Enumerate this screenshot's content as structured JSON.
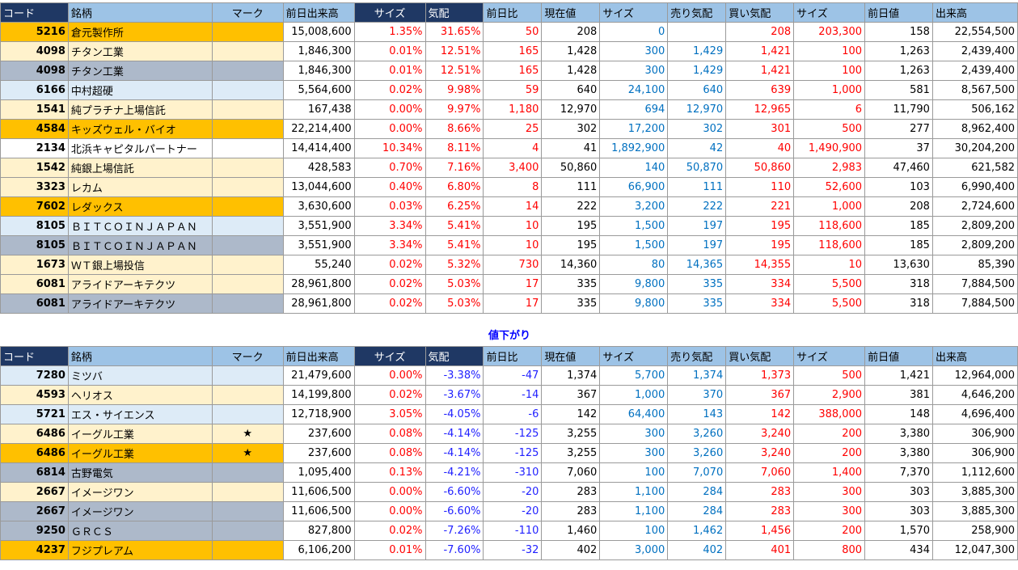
{
  "headers": [
    "コード",
    "銘柄",
    "マーク",
    "前日出来高",
    "サイズ",
    "気配",
    "前日比",
    "現在値",
    "サイズ",
    "売り気配",
    "買い気配",
    "サイズ",
    "前日値",
    "出来高"
  ],
  "section_down_label": "値下がり",
  "up_rows": [
    {
      "bg": "orange",
      "code": "5216",
      "name": "倉元製作所",
      "mark": "",
      "prev_vol": "15,008,600",
      "size1": "1.35%",
      "kehai": "31.65%",
      "change": "50",
      "price": "208",
      "size2": "0",
      "ask": "",
      "bid": "208",
      "size3": "203,300",
      "prev": "158",
      "vol": "22,554,500"
    },
    {
      "bg": "cream",
      "code": "4098",
      "name": "チタン工業",
      "mark": "",
      "prev_vol": "1,846,300",
      "size1": "0.01%",
      "kehai": "12.51%",
      "change": "165",
      "price": "1,428",
      "size2": "300",
      "ask": "1,429",
      "bid": "1,421",
      "size3": "100",
      "prev": "1,263",
      "vol": "2,439,400"
    },
    {
      "bg": "gray",
      "code": "4098",
      "name": "チタン工業",
      "mark": "",
      "prev_vol": "1,846,300",
      "size1": "0.01%",
      "kehai": "12.51%",
      "change": "165",
      "price": "1,428",
      "size2": "300",
      "ask": "1,429",
      "bid": "1,421",
      "size3": "100",
      "prev": "1,263",
      "vol": "2,439,400"
    },
    {
      "bg": "lightblue",
      "code": "6166",
      "name": "中村超硬",
      "mark": "",
      "prev_vol": "5,564,600",
      "size1": "0.02%",
      "kehai": "9.98%",
      "change": "59",
      "price": "640",
      "size2": "24,100",
      "ask": "640",
      "bid": "639",
      "size3": "1,000",
      "prev": "581",
      "vol": "8,567,500"
    },
    {
      "bg": "cream",
      "code": "1541",
      "name": "純プラチナ上場信託",
      "mark": "",
      "prev_vol": "167,438",
      "size1": "0.00%",
      "kehai": "9.97%",
      "change": "1,180",
      "price": "12,970",
      "size2": "694",
      "ask": "12,970",
      "bid": "12,965",
      "size3": "6",
      "prev": "11,790",
      "vol": "506,162"
    },
    {
      "bg": "orange",
      "code": "4584",
      "name": "キッズウェル・バイオ",
      "mark": "",
      "prev_vol": "22,214,400",
      "size1": "0.00%",
      "kehai": "8.66%",
      "change": "25",
      "price": "302",
      "size2": "17,200",
      "ask": "302",
      "bid": "301",
      "size3": "500",
      "prev": "277",
      "vol": "8,962,400"
    },
    {
      "bg": "white",
      "code": "2134",
      "name": "北浜キャピタルパートナー",
      "mark": "",
      "prev_vol": "14,414,400",
      "size1": "10.34%",
      "kehai": "8.11%",
      "change": "4",
      "price": "41",
      "size2": "1,892,900",
      "ask": "42",
      "bid": "40",
      "size3": "1,490,900",
      "prev": "37",
      "vol": "30,204,200"
    },
    {
      "bg": "cream",
      "code": "1542",
      "name": "純銀上場信託",
      "mark": "",
      "prev_vol": "428,583",
      "size1": "0.70%",
      "kehai": "7.16%",
      "change": "3,400",
      "price": "50,860",
      "size2": "140",
      "ask": "50,870",
      "bid": "50,860",
      "size3": "2,983",
      "prev": "47,460",
      "vol": "621,582"
    },
    {
      "bg": "cream",
      "code": "3323",
      "name": "レカム",
      "mark": "",
      "prev_vol": "13,044,600",
      "size1": "0.40%",
      "kehai": "6.80%",
      "change": "8",
      "price": "111",
      "size2": "66,900",
      "ask": "111",
      "bid": "110",
      "size3": "52,600",
      "prev": "103",
      "vol": "6,990,400"
    },
    {
      "bg": "orange",
      "code": "7602",
      "name": "レダックス",
      "mark": "",
      "prev_vol": "3,630,600",
      "size1": "0.03%",
      "kehai": "6.25%",
      "change": "14",
      "price": "222",
      "size2": "3,200",
      "ask": "222",
      "bid": "221",
      "size3": "1,000",
      "prev": "208",
      "vol": "2,724,600"
    },
    {
      "bg": "lightblue",
      "code": "8105",
      "name": "ＢＩＴＣＯＩＮＪＡＰＡＮ",
      "mark": "",
      "prev_vol": "3,551,900",
      "size1": "3.34%",
      "kehai": "5.41%",
      "change": "10",
      "price": "195",
      "size2": "1,500",
      "ask": "197",
      "bid": "195",
      "size3": "118,600",
      "prev": "185",
      "vol": "2,809,200"
    },
    {
      "bg": "gray",
      "code": "8105",
      "name": "ＢＩＴＣＯＩＮＪＡＰＡＮ",
      "mark": "",
      "prev_vol": "3,551,900",
      "size1": "3.34%",
      "kehai": "5.41%",
      "change": "10",
      "price": "195",
      "size2": "1,500",
      "ask": "197",
      "bid": "195",
      "size3": "118,600",
      "prev": "185",
      "vol": "2,809,200"
    },
    {
      "bg": "cream",
      "code": "1673",
      "name": "ＷＴ銀上場投信",
      "mark": "",
      "prev_vol": "55,240",
      "size1": "0.02%",
      "kehai": "5.32%",
      "change": "730",
      "price": "14,360",
      "size2": "80",
      "ask": "14,365",
      "bid": "14,355",
      "size3": "10",
      "prev": "13,630",
      "vol": "85,390"
    },
    {
      "bg": "cream",
      "code": "6081",
      "name": "アライドアーキテクツ",
      "mark": "",
      "prev_vol": "28,961,800",
      "size1": "0.02%",
      "kehai": "5.03%",
      "change": "17",
      "price": "335",
      "size2": "9,800",
      "ask": "335",
      "bid": "334",
      "size3": "5,500",
      "prev": "318",
      "vol": "7,884,500"
    },
    {
      "bg": "gray",
      "code": "6081",
      "name": "アライドアーキテクツ",
      "mark": "",
      "prev_vol": "28,961,800",
      "size1": "0.02%",
      "kehai": "5.03%",
      "change": "17",
      "price": "335",
      "size2": "9,800",
      "ask": "335",
      "bid": "334",
      "size3": "5,500",
      "prev": "318",
      "vol": "7,884,500"
    }
  ],
  "down_rows": [
    {
      "bg": "lightblue",
      "code": "7280",
      "name": "ミツバ",
      "mark": "",
      "prev_vol": "21,479,600",
      "size1": "0.00%",
      "kehai": "-3.38%",
      "change": "-47",
      "price": "1,374",
      "size2": "5,700",
      "ask": "1,374",
      "bid": "1,373",
      "size3": "500",
      "prev": "1,421",
      "vol": "12,964,000"
    },
    {
      "bg": "cream",
      "code": "4593",
      "name": "ヘリオス",
      "mark": "",
      "prev_vol": "14,199,800",
      "size1": "0.02%",
      "kehai": "-3.67%",
      "change": "-14",
      "price": "367",
      "size2": "1,000",
      "ask": "370",
      "bid": "367",
      "size3": "2,900",
      "prev": "381",
      "vol": "4,646,200"
    },
    {
      "bg": "lightblue",
      "code": "5721",
      "name": "エス・サイエンス",
      "mark": "",
      "prev_vol": "12,718,900",
      "size1": "3.05%",
      "kehai": "-4.05%",
      "change": "-6",
      "price": "142",
      "size2": "64,400",
      "ask": "143",
      "bid": "142",
      "size3": "388,000",
      "prev": "148",
      "vol": "4,696,400"
    },
    {
      "bg": "cream",
      "code": "6486",
      "name": "イーグル工業",
      "mark": "★",
      "prev_vol": "237,600",
      "size1": "0.08%",
      "kehai": "-4.14%",
      "change": "-125",
      "price": "3,255",
      "size2": "300",
      "ask": "3,260",
      "bid": "3,240",
      "size3": "200",
      "prev": "3,380",
      "vol": "306,900"
    },
    {
      "bg": "orange",
      "code": "6486",
      "name": "イーグル工業",
      "mark": "★",
      "prev_vol": "237,600",
      "size1": "0.08%",
      "kehai": "-4.14%",
      "change": "-125",
      "price": "3,255",
      "size2": "300",
      "ask": "3,260",
      "bid": "3,240",
      "size3": "200",
      "prev": "3,380",
      "vol": "306,900"
    },
    {
      "bg": "gray",
      "code": "6814",
      "name": "古野電気",
      "mark": "",
      "prev_vol": "1,095,400",
      "size1": "0.13%",
      "kehai": "-4.21%",
      "change": "-310",
      "price": "7,060",
      "size2": "100",
      "ask": "7,070",
      "bid": "7,060",
      "size3": "1,400",
      "prev": "7,370",
      "vol": "1,112,600"
    },
    {
      "bg": "cream",
      "code": "2667",
      "name": "イメージワン",
      "mark": "",
      "prev_vol": "11,606,500",
      "size1": "0.00%",
      "kehai": "-6.60%",
      "change": "-20",
      "price": "283",
      "size2": "1,100",
      "ask": "284",
      "bid": "283",
      "size3": "300",
      "prev": "303",
      "vol": "3,885,300"
    },
    {
      "bg": "gray",
      "code": "2667",
      "name": "イメージワン",
      "mark": "",
      "prev_vol": "11,606,500",
      "size1": "0.00%",
      "kehai": "-6.60%",
      "change": "-20",
      "price": "283",
      "size2": "1,100",
      "ask": "284",
      "bid": "283",
      "size3": "300",
      "prev": "303",
      "vol": "3,885,300"
    },
    {
      "bg": "gray",
      "code": "9250",
      "name": "ＧＲＣＳ",
      "mark": "",
      "prev_vol": "827,800",
      "size1": "0.02%",
      "kehai": "-7.26%",
      "change": "-110",
      "price": "1,460",
      "size2": "100",
      "ask": "1,462",
      "bid": "1,456",
      "size3": "200",
      "prev": "1,570",
      "vol": "258,900"
    },
    {
      "bg": "orange",
      "code": "4237",
      "name": "フジプレアム",
      "mark": "",
      "prev_vol": "6,106,200",
      "size1": "0.01%",
      "kehai": "-7.60%",
      "change": "-32",
      "price": "402",
      "size2": "3,000",
      "ask": "402",
      "bid": "401",
      "size3": "800",
      "prev": "434",
      "vol": "12,047,300"
    }
  ]
}
